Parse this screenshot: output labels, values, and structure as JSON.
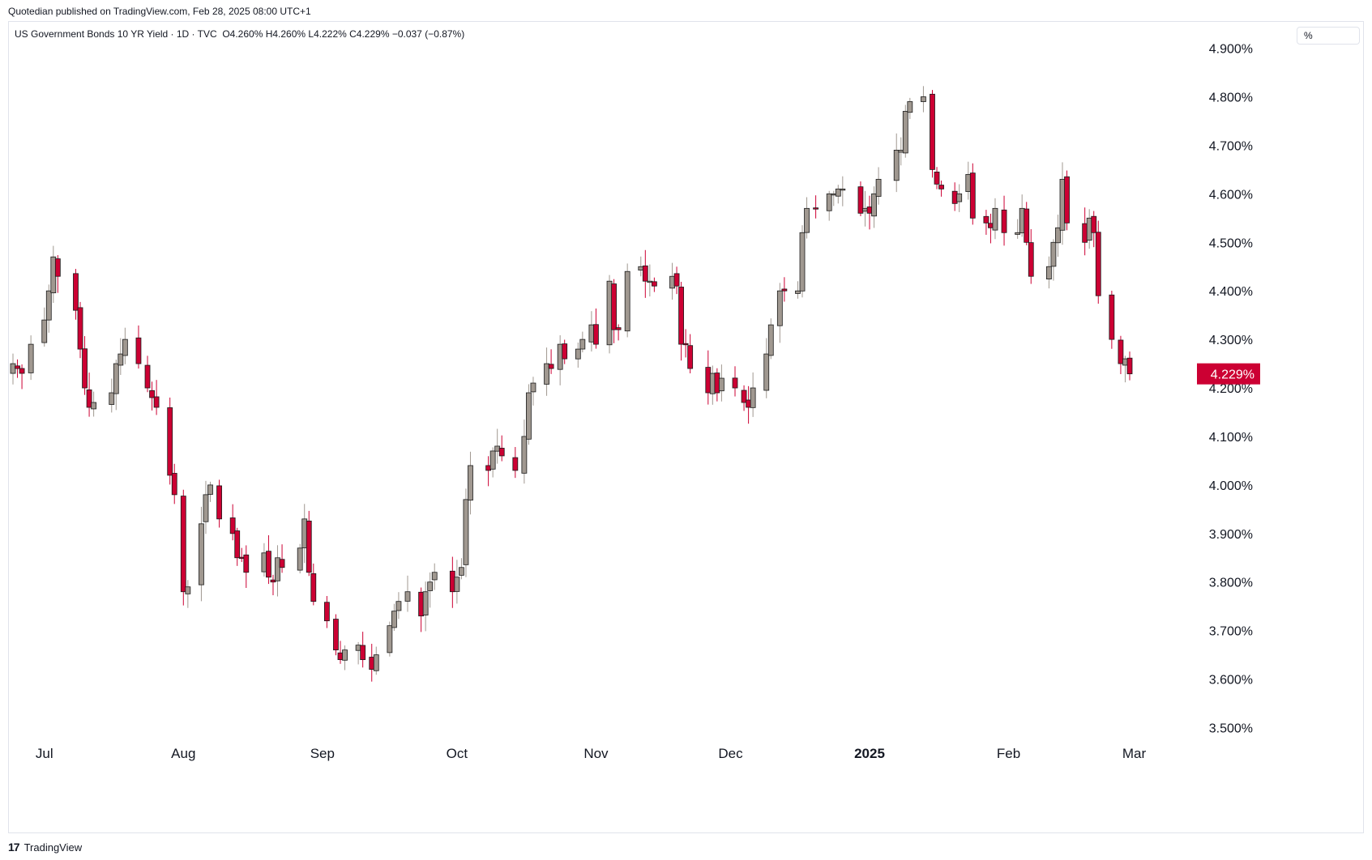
{
  "header": {
    "published_by": "Quotedian published on TradingView.com, Feb 28, 2025 08:00 UTC+1"
  },
  "legend": {
    "symbol": "US Government Bonds 10 YR Yield · 1D · TVC",
    "ohlc": "O4.260%  H4.260%  L4.222%  C4.229%  −0.037 (−0.87%)"
  },
  "unit_label": "%",
  "footer": {
    "brand": "TradingView",
    "logo_glyph": "17"
  },
  "colors": {
    "up": "#a09890",
    "down": "#cc0033",
    "last_price_bg": "#cc0033",
    "grid": "#ffffff"
  },
  "chart_data": {
    "type": "candlestick",
    "title": "US Government Bonds 10 YR Yield · 1D · TVC",
    "ylim": [
      3.45,
      4.93
    ],
    "y_ticks": [
      "3.500%",
      "3.600%",
      "3.700%",
      "3.800%",
      "3.900%",
      "4.000%",
      "4.100%",
      "4.200%",
      "4.300%",
      "4.400%",
      "4.500%",
      "4.600%",
      "4.700%",
      "4.800%",
      "4.900%"
    ],
    "y_tick_values": [
      3.5,
      3.6,
      3.7,
      3.8,
      3.9,
      4.0,
      4.1,
      4.2,
      4.3,
      4.4,
      4.5,
      4.6,
      4.7,
      4.8,
      4.9
    ],
    "x_ticks": [
      "Jul",
      "Aug",
      "Sep",
      "Oct",
      "Nov",
      "Dec",
      "2025",
      "Feb",
      "Mar"
    ],
    "x_tick_dates": [
      "2024-07-01",
      "2024-08-01",
      "2024-09-01",
      "2024-10-01",
      "2024-11-01",
      "2024-12-01",
      "2025-01-01",
      "2025-02-01",
      "2025-03-01"
    ],
    "last_price": "4.229%",
    "last_value": 4.229,
    "date_range": [
      "2024-06-24",
      "2025-02-28"
    ],
    "closes": [
      4.25,
      4.24,
      4.23,
      4.29,
      4.34,
      4.4,
      4.47,
      4.43,
      4.36,
      4.28,
      4.2,
      4.16,
      4.17,
      4.19,
      4.25,
      4.27,
      4.3,
      4.25,
      4.2,
      4.18,
      4.16,
      4.02,
      3.98,
      3.78,
      3.79,
      3.92,
      3.98,
      4.0,
      3.93,
      3.9,
      3.85,
      3.85,
      3.82,
      3.86,
      3.81,
      3.8,
      3.85,
      3.83,
      3.87,
      3.93,
      3.82,
      3.76,
      3.72,
      3.66,
      3.64,
      3.66,
      3.67,
      3.64,
      3.62,
      3.65,
      3.71,
      3.74,
      3.76,
      3.78,
      3.73,
      3.78,
      3.8,
      3.82,
      3.78,
      3.81,
      3.83,
      3.97,
      4.04,
      4.03,
      4.07,
      4.08,
      4.06,
      4.03,
      4.1,
      4.19,
      4.21,
      4.25,
      4.24,
      4.29,
      4.26,
      4.28,
      4.3,
      4.33,
      4.29,
      4.42,
      4.32,
      4.32,
      4.44,
      4.45,
      4.42,
      4.42,
      4.41,
      4.43,
      4.41,
      4.29,
      4.29,
      4.24,
      4.19,
      4.23,
      4.19,
      4.22,
      4.2,
      4.17,
      4.16,
      4.2,
      4.27,
      4.33,
      4.4,
      4.4,
      4.4,
      4.52,
      4.57,
      4.57,
      4.6,
      4.6,
      4.61,
      4.61,
      4.56,
      4.57,
      4.56,
      4.6,
      4.63,
      4.69,
      4.69,
      4.77,
      4.79,
      4.8,
      4.65,
      4.62,
      4.61,
      4.58,
      4.6,
      4.64,
      4.55,
      4.54,
      4.53,
      4.57,
      4.52,
      4.52,
      4.57,
      4.5,
      4.43,
      4.45,
      4.5,
      4.53,
      4.63,
      4.54,
      4.5,
      4.55,
      4.52,
      4.39,
      4.3,
      4.25,
      4.26,
      4.229
    ]
  }
}
